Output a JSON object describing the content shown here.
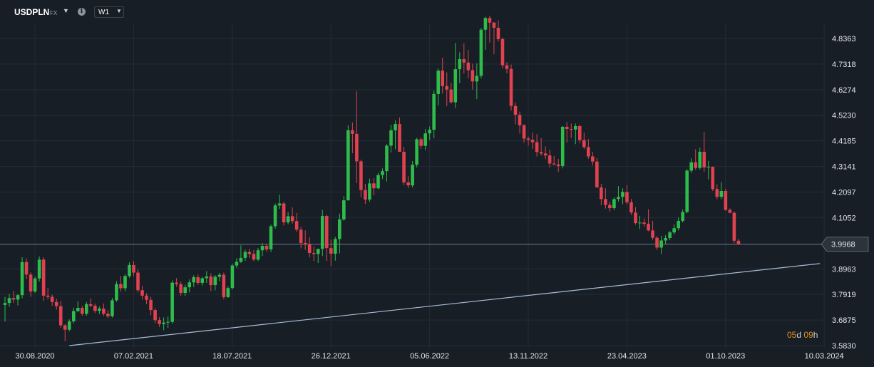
{
  "toolbar": {
    "symbol": "USDPLN",
    "market": "FX",
    "info_icon": "info-icon",
    "timeframe": "W1"
  },
  "countdown": {
    "days": "05",
    "days_unit": "d",
    "hours": "09",
    "hours_unit": "h"
  },
  "colors": {
    "up": "#2ebd4b",
    "down": "#e0434f",
    "grid": "#232c36",
    "trendline": "#a9bdd6",
    "price_line": "#6f7f90",
    "background": "#171e26"
  },
  "chart_data": {
    "type": "candlestick",
    "title": "",
    "xlabel": "",
    "ylabel": "",
    "symbol": "USDPLN",
    "timeframe": "W1",
    "ylim": [
      3.583,
      4.925
    ],
    "y_ticks": [
      "4.8363",
      "4.7318",
      "4.6274",
      "4.5230",
      "4.4185",
      "4.3141",
      "4.2097",
      "4.1052",
      "3.9968",
      "3.8963",
      "3.7919",
      "3.6875",
      "3.5830"
    ],
    "x_ticks": [
      "30.08.2020",
      "07.02.2021",
      "18.07.2021",
      "26.12.2021",
      "05.06.2022",
      "13.11.2022",
      "23.04.2023",
      "01.10.2023",
      "10.03.2024"
    ],
    "x_tick_candle_index": [
      2,
      25,
      48,
      71,
      94,
      117,
      140,
      163,
      186
    ],
    "current_price": "3.9968",
    "grid": true,
    "trendline": {
      "from": {
        "candle_index": 15,
        "price": 3.583
      },
      "to": {
        "candle_index": 190,
        "price": 3.918
      }
    },
    "series": [
      {
        "name": "USDPLN",
        "candles": [
          [
            3.749,
            3.782,
            3.681,
            3.757
          ],
          [
            3.757,
            3.794,
            3.742,
            3.777
          ],
          [
            3.777,
            3.807,
            3.757,
            3.771
          ],
          [
            3.771,
            3.794,
            3.747,
            3.789
          ],
          [
            3.789,
            3.944,
            3.776,
            3.924
          ],
          [
            3.924,
            3.939,
            3.854,
            3.873
          ],
          [
            3.873,
            3.882,
            3.782,
            3.804
          ],
          [
            3.804,
            3.865,
            3.798,
            3.857
          ],
          [
            3.857,
            3.947,
            3.844,
            3.934
          ],
          [
            3.934,
            3.944,
            3.765,
            3.787
          ],
          [
            3.787,
            3.818,
            3.772,
            3.782
          ],
          [
            3.782,
            3.791,
            3.746,
            3.761
          ],
          [
            3.761,
            3.775,
            3.73,
            3.744
          ],
          [
            3.744,
            3.765,
            3.656,
            3.666
          ],
          [
            3.666,
            3.671,
            3.6,
            3.648
          ],
          [
            3.648,
            3.69,
            3.641,
            3.682
          ],
          [
            3.682,
            3.738,
            3.674,
            3.724
          ],
          [
            3.724,
            3.763,
            3.719,
            3.737
          ],
          [
            3.737,
            3.745,
            3.705,
            3.713
          ],
          [
            3.713,
            3.761,
            3.705,
            3.752
          ],
          [
            3.752,
            3.776,
            3.739,
            3.746
          ],
          [
            3.746,
            3.755,
            3.716,
            3.725
          ],
          [
            3.725,
            3.743,
            3.711,
            3.734
          ],
          [
            3.734,
            3.755,
            3.704,
            3.713
          ],
          [
            3.713,
            3.728,
            3.696,
            3.703
          ],
          [
            3.703,
            3.778,
            3.697,
            3.768
          ],
          [
            3.768,
            3.846,
            3.762,
            3.834
          ],
          [
            3.834,
            3.867,
            3.803,
            3.817
          ],
          [
            3.817,
            3.875,
            3.805,
            3.867
          ],
          [
            3.867,
            3.923,
            3.86,
            3.912
          ],
          [
            3.912,
            3.928,
            3.867,
            3.881
          ],
          [
            3.881,
            3.894,
            3.8,
            3.809
          ],
          [
            3.809,
            3.827,
            3.771,
            3.787
          ],
          [
            3.787,
            3.797,
            3.752,
            3.77
          ],
          [
            3.77,
            3.782,
            3.707,
            3.728
          ],
          [
            3.728,
            3.737,
            3.675,
            3.687
          ],
          [
            3.687,
            3.699,
            3.659,
            3.671
          ],
          [
            3.671,
            3.698,
            3.646,
            3.677
          ],
          [
            3.677,
            3.702,
            3.656,
            3.68
          ],
          [
            3.68,
            3.849,
            3.673,
            3.84
          ],
          [
            3.84,
            3.859,
            3.823,
            3.834
          ],
          [
            3.834,
            3.844,
            3.786,
            3.798
          ],
          [
            3.798,
            3.832,
            3.785,
            3.821
          ],
          [
            3.821,
            3.853,
            3.8,
            3.841
          ],
          [
            3.841,
            3.87,
            3.822,
            3.862
          ],
          [
            3.862,
            3.873,
            3.831,
            3.839
          ],
          [
            3.839,
            3.864,
            3.828,
            3.858
          ],
          [
            3.858,
            3.887,
            3.839,
            3.865
          ],
          [
            3.865,
            3.878,
            3.805,
            3.83
          ],
          [
            3.83,
            3.871,
            3.808,
            3.864
          ],
          [
            3.864,
            3.88,
            3.846,
            3.872
          ],
          [
            3.872,
            3.881,
            3.772,
            3.781
          ],
          [
            3.781,
            3.825,
            3.778,
            3.818
          ],
          [
            3.818,
            3.918,
            3.812,
            3.91
          ],
          [
            3.91,
            3.94,
            3.9,
            3.925
          ],
          [
            3.925,
            3.992,
            3.92,
            3.941
          ],
          [
            3.941,
            3.975,
            3.929,
            3.965
          ],
          [
            3.965,
            3.978,
            3.941,
            3.957
          ],
          [
            3.957,
            3.973,
            3.928,
            3.934
          ],
          [
            3.934,
            3.982,
            3.928,
            3.972
          ],
          [
            3.972,
            4.001,
            3.949,
            3.99
          ],
          [
            3.99,
            3.998,
            3.966,
            3.976
          ],
          [
            3.976,
            4.077,
            3.965,
            4.07
          ],
          [
            4.07,
            4.163,
            4.06,
            4.155
          ],
          [
            4.155,
            4.199,
            4.141,
            4.163
          ],
          [
            4.163,
            4.169,
            4.073,
            4.086
          ],
          [
            4.086,
            4.127,
            4.078,
            4.111
          ],
          [
            4.111,
            4.147,
            4.081,
            4.091
          ],
          [
            4.091,
            4.124,
            4.047,
            4.056
          ],
          [
            4.056,
            4.068,
            3.98,
            4.002
          ],
          [
            4.002,
            4.053,
            3.974,
            3.998
          ],
          [
            3.998,
            4.025,
            3.943,
            3.961
          ],
          [
            3.961,
            3.988,
            3.928,
            3.957
          ],
          [
            3.957,
            3.972,
            3.92,
            3.978
          ],
          [
            3.978,
            4.137,
            3.949,
            4.112
          ],
          [
            4.112,
            4.117,
            3.929,
            3.981
          ],
          [
            3.981,
            4.016,
            3.908,
            3.958
          ],
          [
            3.958,
            4.027,
            3.93,
            4.018
          ],
          [
            4.018,
            4.122,
            3.959,
            4.098
          ],
          [
            4.098,
            4.193,
            4.093,
            4.176
          ],
          [
            4.176,
            4.482,
            4.175,
            4.462
          ],
          [
            4.462,
            4.494,
            4.368,
            4.447
          ],
          [
            4.447,
            4.621,
            4.246,
            4.335
          ],
          [
            4.335,
            4.342,
            4.188,
            4.218
          ],
          [
            4.218,
            4.243,
            4.161,
            4.179
          ],
          [
            4.179,
            4.264,
            4.17,
            4.245
          ],
          [
            4.245,
            4.266,
            4.196,
            4.225
          ],
          [
            4.225,
            4.288,
            4.22,
            4.279
          ],
          [
            4.279,
            4.306,
            4.263,
            4.295
          ],
          [
            4.295,
            4.405,
            4.253,
            4.399
          ],
          [
            4.399,
            4.484,
            4.371,
            4.462
          ],
          [
            4.462,
            4.502,
            4.384,
            4.487
          ],
          [
            4.487,
            4.514,
            4.376,
            4.374
          ],
          [
            4.374,
            4.395,
            4.238,
            4.249
          ],
          [
            4.249,
            4.274,
            4.225,
            4.237
          ],
          [
            4.237,
            4.336,
            4.229,
            4.321
          ],
          [
            4.321,
            4.431,
            4.31,
            4.425
          ],
          [
            4.425,
            4.433,
            4.386,
            4.398
          ],
          [
            4.398,
            4.467,
            4.381,
            4.449
          ],
          [
            4.449,
            4.477,
            4.422,
            4.464
          ],
          [
            4.464,
            4.624,
            4.429,
            4.61
          ],
          [
            4.61,
            4.714,
            4.563,
            4.705
          ],
          [
            4.705,
            4.758,
            4.612,
            4.642
          ],
          [
            4.642,
            4.698,
            4.56,
            4.628
          ],
          [
            4.628,
            4.656,
            4.571,
            4.576
          ],
          [
            4.576,
            4.818,
            4.553,
            4.711
          ],
          [
            4.711,
            4.78,
            4.654,
            4.752
          ],
          [
            4.752,
            4.817,
            4.693,
            4.738
          ],
          [
            4.738,
            4.79,
            4.674,
            4.707
          ],
          [
            4.707,
            4.734,
            4.628,
            4.661
          ],
          [
            4.661,
            4.735,
            4.589,
            4.684
          ],
          [
            4.684,
            4.879,
            4.673,
            4.872
          ],
          [
            4.872,
            4.925,
            4.79,
            4.92
          ],
          [
            4.92,
            4.929,
            4.82,
            4.901
          ],
          [
            4.901,
            4.903,
            4.772,
            4.88
          ],
          [
            4.88,
            4.91,
            4.824,
            4.834
          ],
          [
            4.834,
            4.84,
            4.714,
            4.727
          ],
          [
            4.727,
            4.74,
            4.694,
            4.712
          ],
          [
            4.712,
            4.73,
            4.542,
            4.561
          ],
          [
            4.561,
            4.575,
            4.486,
            4.525
          ],
          [
            4.525,
            4.538,
            4.449,
            4.482
          ],
          [
            4.482,
            4.487,
            4.411,
            4.428
          ],
          [
            4.428,
            4.436,
            4.399,
            4.423
          ],
          [
            4.423,
            4.453,
            4.386,
            4.413
          ],
          [
            4.413,
            4.446,
            4.355,
            4.373
          ],
          [
            4.373,
            4.43,
            4.358,
            4.367
          ],
          [
            4.367,
            4.396,
            4.344,
            4.359
          ],
          [
            4.359,
            4.382,
            4.31,
            4.326
          ],
          [
            4.326,
            4.357,
            4.32,
            4.322
          ],
          [
            4.322,
            4.345,
            4.292,
            4.316
          ],
          [
            4.316,
            4.479,
            4.306,
            4.476
          ],
          [
            4.476,
            4.496,
            4.412,
            4.467
          ],
          [
            4.467,
            4.489,
            4.43,
            4.465
          ],
          [
            4.465,
            4.489,
            4.405,
            4.479
          ],
          [
            4.479,
            4.483,
            4.409,
            4.422
          ],
          [
            4.422,
            4.452,
            4.386,
            4.393
          ],
          [
            4.393,
            4.426,
            4.345,
            4.355
          ],
          [
            4.355,
            4.374,
            4.318,
            4.334
          ],
          [
            4.334,
            4.349,
            4.226,
            4.229
          ],
          [
            4.229,
            4.243,
            4.156,
            4.181
          ],
          [
            4.181,
            4.225,
            4.142,
            4.157
          ],
          [
            4.157,
            4.17,
            4.13,
            4.144
          ],
          [
            4.144,
            4.189,
            4.136,
            4.181
          ],
          [
            4.181,
            4.234,
            4.171,
            4.19
          ],
          [
            4.19,
            4.225,
            4.16,
            4.21
          ],
          [
            4.21,
            4.238,
            4.159,
            4.168
          ],
          [
            4.168,
            4.182,
            4.116,
            4.126
          ],
          [
            4.126,
            4.148,
            4.077,
            4.083
          ],
          [
            4.083,
            4.113,
            4.059,
            4.085
          ],
          [
            4.085,
            4.102,
            4.068,
            4.08
          ],
          [
            4.08,
            4.139,
            4.05,
            4.053
          ],
          [
            4.053,
            4.092,
            4.015,
            4.023
          ],
          [
            4.023,
            4.03,
            3.974,
            3.983
          ],
          [
            3.983,
            4.031,
            3.957,
            4.012
          ],
          [
            4.012,
            4.034,
            3.996,
            4.022
          ],
          [
            4.022,
            4.051,
            4.013,
            4.045
          ],
          [
            4.045,
            4.078,
            4.036,
            4.062
          ],
          [
            4.062,
            4.106,
            4.053,
            4.092
          ],
          [
            4.092,
            4.139,
            4.085,
            4.128
          ],
          [
            4.128,
            4.303,
            4.123,
            4.297
          ],
          [
            4.297,
            4.347,
            4.288,
            4.331
          ],
          [
            4.331,
            4.384,
            4.3,
            4.308
          ],
          [
            4.308,
            4.391,
            4.301,
            4.374
          ],
          [
            4.374,
            4.455,
            4.293,
            4.31
          ],
          [
            4.31,
            4.337,
            4.261,
            4.313
          ],
          [
            4.313,
            4.313,
            4.214,
            4.222
          ],
          [
            4.222,
            4.241,
            4.18,
            4.19
          ],
          [
            4.19,
            4.25,
            4.18,
            4.214
          ],
          [
            4.214,
            4.223,
            4.133,
            4.137
          ],
          [
            4.137,
            4.143,
            4.123,
            4.125
          ],
          [
            4.125,
            4.13,
            4.002,
            4.011
          ],
          [
            4.011,
            4.019,
            3.994,
            3.997
          ]
        ]
      }
    ]
  }
}
